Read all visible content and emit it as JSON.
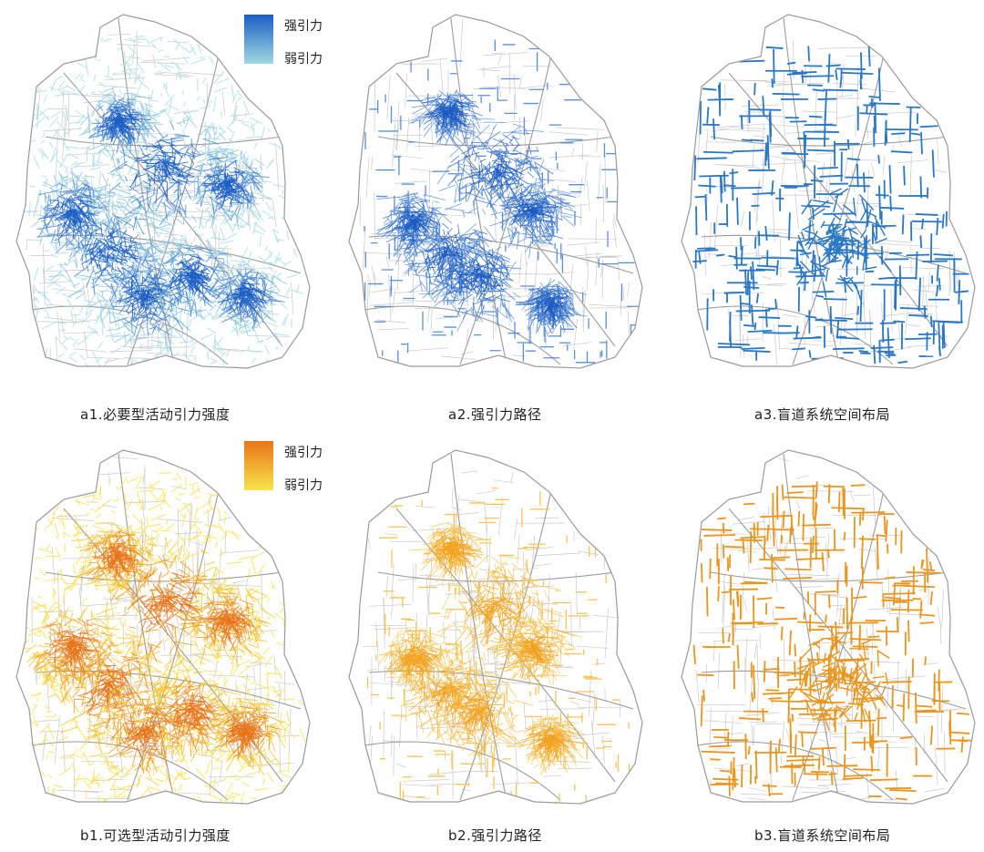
{
  "figure": {
    "panels": [
      {
        "id": "a1",
        "caption": "a1.必要型活动引力强度",
        "style": "intensity",
        "palette": [
          "#1c5fc4",
          "#4a86d2",
          "#8ac6da",
          "#a8dbe2"
        ]
      },
      {
        "id": "a2",
        "caption": "a2.强引力路径",
        "style": "path",
        "palette": [
          "#1b5cc2",
          "#2e6fcc",
          "#5b8fd8"
        ]
      },
      {
        "id": "a3",
        "caption": "a3.盲道系统空间布局",
        "style": "grid",
        "palette": [
          "#2a77c4"
        ]
      },
      {
        "id": "b1",
        "caption": "b1.可选型活动引力强度",
        "style": "intensity",
        "palette": [
          "#e8741a",
          "#f0951e",
          "#f6c42a",
          "#f8e04a"
        ]
      },
      {
        "id": "b2",
        "caption": "b2.强引力路径",
        "style": "path",
        "palette": [
          "#f2a21e",
          "#f5b331",
          "#f7c452"
        ]
      },
      {
        "id": "b3",
        "caption": "b3.盲道系统空间布局",
        "style": "grid",
        "palette": [
          "#e9961e"
        ]
      }
    ],
    "legends": [
      {
        "id": "blue",
        "strong": "强引力",
        "weak": "弱引力",
        "colors": [
          "#1c5fc4",
          "#9fd8e0"
        ]
      },
      {
        "id": "orange",
        "strong": "强引力",
        "weak": "弱引力",
        "colors": [
          "#e8741a",
          "#f8e44a"
        ]
      }
    ],
    "base_road_color": "#c9c9c9",
    "outline_color": "#9a9a9a"
  }
}
